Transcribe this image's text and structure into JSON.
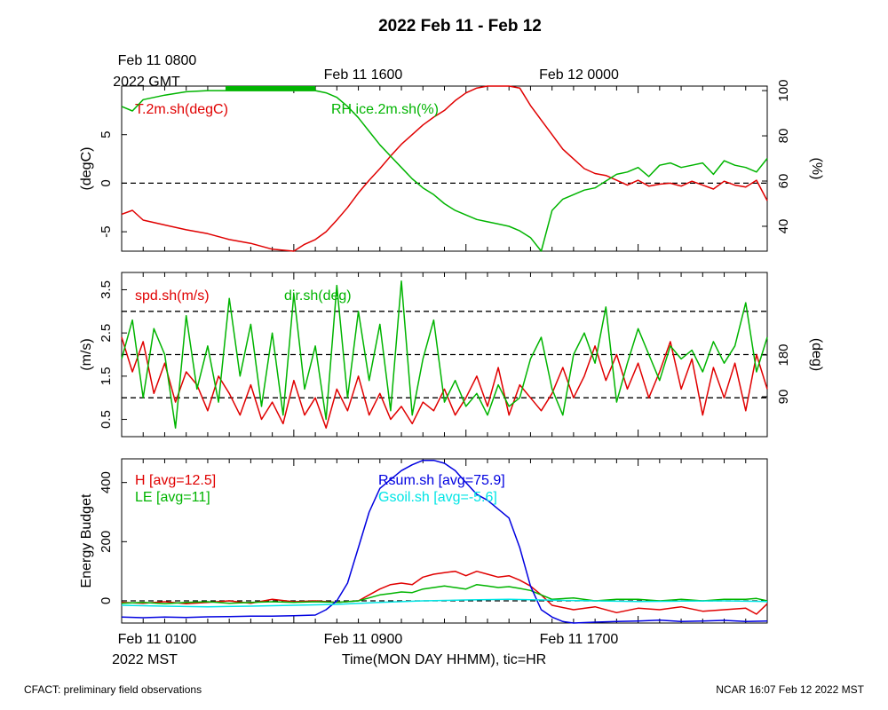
{
  "title": "2022 Feb 11 - Feb 12",
  "top_time_labels": [
    {
      "line1": "Feb 11 0800",
      "line2": "2022 GMT"
    },
    {
      "line1": "Feb 11 1600",
      "line2": ""
    },
    {
      "line1": "Feb 12 0000",
      "line2": ""
    }
  ],
  "bottom_time_labels": [
    {
      "line1": "Feb 11 0100",
      "line2": "2022 MST"
    },
    {
      "line1": "Feb 11 0900",
      "line2": ""
    },
    {
      "line1": "Feb 11 1700",
      "line2": ""
    }
  ],
  "xlabel": "Time(MON DAY HHMM), tic=HR",
  "footer_left": "CFACT: preliminary field observations",
  "footer_right": "NCAR 16:07 Feb 12 2022 MST",
  "colors": {
    "red": "#e00000",
    "green": "#00b400",
    "blue": "#0000e0",
    "cyan": "#00e5e5"
  },
  "chart_data": [
    {
      "type": "line",
      "panel": "temperature-humidity",
      "x_unit": "hours since Feb 11 0100 MST",
      "xlim": [
        0,
        30
      ],
      "ylabel": "(degC)",
      "ylim": [
        -7,
        10
      ],
      "yticks": [
        -5,
        0,
        5
      ],
      "y2label": "(%)",
      "y2lim": [
        29,
        102
      ],
      "y2ticks": [
        40,
        60,
        80,
        100
      ],
      "ref_lines": [
        0
      ],
      "series": [
        {
          "name": "T.2m.sh(degC)",
          "color": "red",
          "axis": "left",
          "x": [
            0,
            0.5,
            1,
            2,
            3,
            4,
            5,
            6,
            7,
            8,
            8.5,
            9,
            9.5,
            10,
            10.5,
            11,
            11.5,
            12,
            12.5,
            13,
            13.5,
            14,
            14.5,
            15,
            15.5,
            16,
            16.5,
            17,
            17.5,
            18,
            18.5,
            19,
            19.5,
            20,
            20.5,
            21,
            21.5,
            22,
            22.5,
            23,
            23.5,
            24,
            24.5,
            25,
            25.5,
            26,
            26.5,
            27,
            27.5,
            28,
            28.5,
            29,
            29.5,
            30
          ],
          "y": [
            -3.2,
            -2.8,
            -3.8,
            -4.3,
            -4.8,
            -5.2,
            -5.8,
            -6.2,
            -6.8,
            -7.0,
            -6.3,
            -5.8,
            -5.0,
            -3.8,
            -2.5,
            -1.0,
            0.3,
            1.5,
            2.8,
            4.0,
            5.0,
            6.0,
            6.8,
            7.5,
            8.5,
            9.3,
            9.8,
            10.2,
            10.4,
            10.3,
            9.8,
            8.0,
            6.5,
            5.0,
            3.5,
            2.5,
            1.5,
            1.0,
            0.8,
            0.3,
            -0.2,
            0.3,
            -0.3,
            -0.1,
            0.0,
            -0.3,
            0.2,
            -0.2,
            -0.6,
            0.2,
            -0.2,
            -0.4,
            0.3,
            -1.8
          ]
        },
        {
          "name": "RH.ice.2m.sh(%)",
          "color": "green",
          "axis": "right",
          "x": [
            0,
            0.5,
            1,
            2,
            3,
            4,
            5,
            6,
            7,
            8,
            8.5,
            9,
            9.5,
            10,
            10.5,
            11,
            11.5,
            12,
            12.5,
            13,
            13.5,
            14,
            14.5,
            15,
            15.5,
            16,
            16.5,
            17,
            17.5,
            18,
            18.5,
            19,
            19.5,
            20,
            20.5,
            21,
            21.5,
            22,
            22.5,
            23,
            23.5,
            24,
            24.5,
            25,
            25.5,
            26,
            26.5,
            27,
            27.5,
            28,
            28.5,
            29,
            29.5,
            30
          ],
          "y": [
            93,
            91,
            96,
            98,
            99.5,
            100,
            100,
            100,
            100,
            100,
            100,
            100,
            99,
            97,
            93,
            88,
            82,
            76,
            71,
            66,
            61,
            57,
            54,
            50,
            47,
            45,
            43,
            42,
            41,
            40,
            38,
            35,
            28,
            47,
            52,
            54,
            56,
            57,
            60,
            63,
            64,
            66,
            62,
            67,
            68,
            66,
            67,
            68,
            63,
            69,
            67,
            66,
            64,
            70
          ]
        }
      ]
    },
    {
      "type": "line",
      "panel": "wind",
      "x_unit": "hours since Feb 11 0100 MST",
      "xlim": [
        0,
        30
      ],
      "ylabel": "(m/s)",
      "ylim": [
        0.1,
        3.9
      ],
      "yticks": [
        0.5,
        1.5,
        2.5,
        3.5
      ],
      "y2label": "(deg)",
      "y2ticks": [
        90,
        180
      ],
      "ref_lines": [
        1,
        2,
        3
      ],
      "series": [
        {
          "name": "spd.sh(m/s)",
          "color": "red",
          "axis": "left",
          "x": [
            0,
            0.5,
            1,
            1.5,
            2,
            2.5,
            3,
            3.5,
            4,
            4.5,
            5,
            5.5,
            6,
            6.5,
            7,
            7.5,
            8,
            8.5,
            9,
            9.5,
            10,
            10.5,
            11,
            11.5,
            12,
            12.5,
            13,
            13.5,
            14,
            14.5,
            15,
            15.5,
            16,
            16.5,
            17,
            17.5,
            18,
            18.5,
            19,
            19.5,
            20,
            20.5,
            21,
            21.5,
            22,
            22.5,
            23,
            23.5,
            24,
            24.5,
            25,
            25.5,
            26,
            26.5,
            27,
            27.5,
            28,
            28.5,
            29,
            29.5,
            30
          ],
          "y": [
            2.4,
            1.6,
            2.3,
            1.1,
            1.8,
            0.9,
            1.6,
            1.3,
            0.7,
            1.5,
            1.1,
            0.6,
            1.3,
            0.5,
            0.9,
            0.4,
            1.4,
            0.6,
            1.0,
            0.3,
            1.2,
            0.7,
            1.5,
            0.6,
            1.1,
            0.5,
            0.8,
            0.4,
            0.9,
            0.7,
            1.2,
            0.6,
            1.0,
            1.5,
            0.8,
            1.7,
            0.6,
            1.3,
            1.0,
            0.7,
            1.1,
            1.7,
            1.0,
            1.5,
            2.2,
            1.4,
            2.0,
            1.2,
            1.8,
            1.0,
            1.6,
            2.3,
            1.2,
            1.9,
            0.6,
            1.7,
            1.0,
            1.8,
            0.7,
            2.0,
            1.2
          ]
        },
        {
          "name": "dir.sh(deg)",
          "color": "green",
          "axis": "right",
          "x": [
            0,
            0.5,
            1,
            1.5,
            2,
            2.5,
            3,
            3.5,
            4,
            4.5,
            5,
            5.5,
            6,
            6.5,
            7,
            7.5,
            8,
            8.5,
            9,
            9.5,
            10,
            10.5,
            11,
            11.5,
            12,
            12.5,
            13,
            13.5,
            14,
            14.5,
            15,
            15.5,
            16,
            16.5,
            17,
            17.5,
            18,
            18.5,
            19,
            19.5,
            20,
            20.5,
            21,
            21.5,
            22,
            22.5,
            23,
            23.5,
            24,
            24.5,
            25,
            25.5,
            26,
            26.5,
            27,
            27.5,
            28,
            28.5,
            29,
            29.5,
            30
          ],
          "y": [
            1.9,
            2.8,
            1.0,
            2.6,
            2.0,
            0.3,
            2.9,
            1.2,
            2.2,
            0.9,
            3.3,
            1.5,
            2.7,
            0.8,
            2.5,
            0.6,
            3.4,
            1.2,
            2.2,
            0.5,
            3.6,
            1.0,
            3.0,
            1.4,
            2.7,
            0.7,
            3.7,
            0.6,
            1.9,
            2.8,
            0.9,
            1.4,
            0.8,
            1.1,
            0.6,
            1.3,
            0.8,
            1.0,
            1.9,
            2.4,
            1.2,
            0.6,
            2.0,
            2.5,
            1.8,
            3.1,
            0.9,
            1.8,
            2.6,
            2.0,
            1.4,
            2.2,
            1.9,
            2.1,
            1.6,
            2.3,
            1.8,
            2.2,
            3.2,
            1.6,
            2.4
          ]
        }
      ]
    },
    {
      "type": "line",
      "panel": "energy-budget",
      "x_unit": "hours since Feb 11 0100 MST",
      "xlim": [
        0,
        30
      ],
      "ylabel": "Energy Budget",
      "ylim": [
        -75,
        480
      ],
      "yticks": [
        0,
        200,
        400
      ],
      "ref_lines": [
        0
      ],
      "series": [
        {
          "name": "H [avg=12.5]",
          "color": "red",
          "x": [
            0,
            1,
            2,
            3,
            4,
            5,
            6,
            7,
            8,
            9,
            10,
            11,
            11.5,
            12,
            12.5,
            13,
            13.5,
            14,
            14.5,
            15,
            15.5,
            16,
            16.5,
            17,
            17.5,
            18,
            18.5,
            19,
            19.5,
            20,
            21,
            22,
            23,
            24,
            25,
            26,
            27,
            28,
            29,
            29.5,
            30
          ],
          "y": [
            -5,
            -8,
            -3,
            -10,
            -5,
            0,
            -8,
            5,
            -3,
            0,
            -5,
            0,
            20,
            40,
            55,
            60,
            55,
            80,
            90,
            95,
            100,
            85,
            100,
            90,
            80,
            85,
            70,
            50,
            20,
            -15,
            -30,
            -20,
            -40,
            -25,
            -30,
            -20,
            -35,
            -30,
            -25,
            -45,
            -10
          ]
        },
        {
          "name": "LE [avg=11]",
          "color": "green",
          "x": [
            0,
            1,
            2,
            3,
            4,
            5,
            6,
            7,
            8,
            9,
            10,
            11,
            11.5,
            12,
            12.5,
            13,
            13.5,
            14,
            14.5,
            15,
            15.5,
            16,
            16.5,
            17,
            17.5,
            18,
            18.5,
            19,
            19.5,
            20,
            21,
            22,
            23,
            24,
            25,
            26,
            27,
            28,
            29,
            29.5,
            30
          ],
          "y": [
            -8,
            -5,
            -10,
            -5,
            -3,
            -8,
            -5,
            -3,
            -5,
            -3,
            -5,
            0,
            10,
            20,
            25,
            30,
            28,
            40,
            45,
            50,
            45,
            40,
            55,
            50,
            45,
            48,
            42,
            35,
            20,
            5,
            10,
            0,
            5,
            5,
            0,
            5,
            0,
            5,
            5,
            8,
            0
          ]
        },
        {
          "name": "Rsum.sh [avg=75.9]",
          "color": "blue",
          "x": [
            0,
            1,
            2,
            3,
            4,
            5,
            6,
            7,
            8,
            9,
            9.5,
            10,
            10.5,
            11,
            11.5,
            12,
            12.5,
            13,
            13.5,
            14,
            14.5,
            15,
            15.5,
            16,
            16.5,
            17,
            17.5,
            18,
            18.5,
            19,
            19.5,
            20,
            20.5,
            21,
            22,
            23,
            24,
            25,
            26,
            27,
            28,
            29,
            30
          ],
          "y": [
            -55,
            -57,
            -55,
            -56,
            -54,
            -53,
            -52,
            -52,
            -50,
            -48,
            -30,
            0,
            60,
            180,
            300,
            380,
            410,
            440,
            460,
            475,
            475,
            465,
            440,
            400,
            360,
            340,
            310,
            280,
            180,
            50,
            -30,
            -55,
            -70,
            -75,
            -72,
            -70,
            -68,
            -65,
            -70,
            -68,
            -66,
            -70,
            -68
          ]
        },
        {
          "name": "Gsoil.sh [avg=-5.6]",
          "color": "cyan",
          "x": [
            0,
            2,
            4,
            6,
            8,
            10,
            12,
            14,
            16,
            18,
            19,
            20,
            22,
            24,
            26,
            28,
            30
          ],
          "y": [
            -15,
            -18,
            -20,
            -18,
            -15,
            -12,
            -5,
            0,
            3,
            5,
            4,
            2,
            0,
            -2,
            -1,
            0,
            -2
          ]
        }
      ]
    }
  ]
}
